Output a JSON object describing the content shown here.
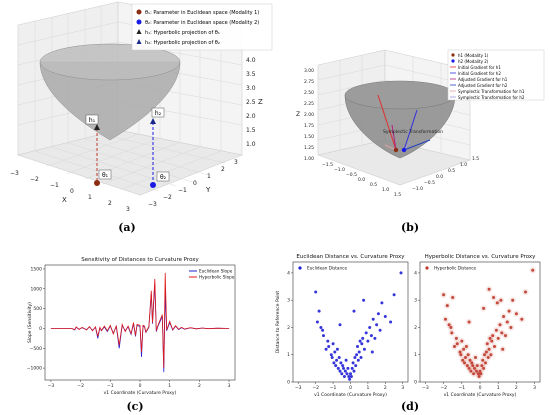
{
  "panels": {
    "a": {
      "caption": "(a)",
      "axes": {
        "x_label": "X",
        "y_label": "Y",
        "z_label": "Z",
        "x_ticks": [
          "−3",
          "−2",
          "−1",
          "0",
          "1",
          "2",
          "3"
        ],
        "y_ticks": [
          "−3",
          "−2",
          "−1",
          "0",
          "1",
          "2",
          "3"
        ],
        "z_ticks": [
          "1.0",
          "1.5",
          "2.0",
          "2.5",
          "3.0",
          "3.5",
          "4.0"
        ]
      },
      "labels": {
        "theta1": "θ₁",
        "theta2": "θ₂",
        "h1": "h₁",
        "h2": "h₂"
      },
      "legend": [
        {
          "marker": "circle",
          "color": "#8b2d10",
          "text": "θ₁: Parameter in Euclidean space (Modality 1)"
        },
        {
          "marker": "circle",
          "color": "#1a1ae6",
          "text": "θ₂: Parameter in Euclidean space (Modality 2)"
        },
        {
          "marker": "triangle",
          "color": "#222222",
          "text": "h₁: Hyperbolic projection of θ₁"
        },
        {
          "marker": "triangle",
          "color": "#1a2a8a",
          "text": "h₂: Hyperbolic projection of θ₂"
        }
      ]
    },
    "b": {
      "caption": "(b)",
      "axes": {
        "z_label": "Z",
        "z_ticks": [
          "1.00",
          "1.25",
          "1.50",
          "1.75",
          "2.00",
          "2.25",
          "2.50",
          "2.75",
          "3.00"
        ],
        "x_ticks": [
          "−1.5",
          "−1.0",
          "−0.5",
          "0.0",
          "0.5",
          "1.0",
          "1.5"
        ],
        "y_ticks": [
          "−1.0",
          "−0.5",
          "0.0",
          "0.5",
          "1.0",
          "1.5"
        ]
      },
      "annotation": "Symplectic Transformation",
      "legend": [
        {
          "marker": "dot",
          "color": "#8b2d10",
          "text": "h1 (Modality 1)"
        },
        {
          "marker": "dot",
          "color": "#1a1ae6",
          "text": "h2 (Modality 2)"
        },
        {
          "marker": "line",
          "color": "#e03030",
          "text": "Initial Gradient for h1"
        },
        {
          "marker": "line",
          "color": "#3030e0",
          "text": "Initial Gradient for h2"
        },
        {
          "marker": "line",
          "color": "#b02080",
          "text": "Adjusted Gradient for h1"
        },
        {
          "marker": "line",
          "color": "#2040c0",
          "text": "Adjusted Gradient for h2"
        },
        {
          "marker": "line",
          "color": "#e0a0a0",
          "text": "Symplectic Transformation for h1"
        },
        {
          "marker": "line",
          "color": "#a0a0e0",
          "text": "Symplectic Transformation for h2"
        }
      ]
    },
    "c": {
      "caption": "(c)"
    },
    "d": {
      "caption": "(d)"
    }
  },
  "chart_data": [
    {
      "type": "line",
      "title": "Sensitivity of Distances to Curvature Proxy",
      "xlabel": "v1 Coordinate (Curvature Proxy)",
      "ylabel": "Slope (Sensitivity)",
      "xlim": [
        -3.2,
        3.2
      ],
      "ylim": [
        -1300,
        1600
      ],
      "xticks": [
        -3,
        -2,
        -1,
        0,
        1,
        2,
        3
      ],
      "yticks": [
        -1000,
        -500,
        0,
        500,
        1000,
        1500
      ],
      "legend": "top-right",
      "series": [
        {
          "name": "Euclidean Slope",
          "color": "#1f1fd6",
          "x": [
            -3.0,
            -2.3,
            -2.2,
            -2.15,
            -2.05,
            -1.95,
            -1.8,
            -1.7,
            -1.6,
            -1.5,
            -1.42,
            -1.35,
            -1.3,
            -1.2,
            -1.1,
            -1.0,
            -0.9,
            -0.8,
            -0.7,
            -0.6,
            -0.5,
            -0.4,
            -0.3,
            -0.22,
            -0.15,
            -0.1,
            0.0,
            0.05,
            0.1,
            0.15,
            0.2,
            0.3,
            0.38,
            0.42,
            0.5,
            0.55,
            0.6,
            0.75,
            0.8,
            0.85,
            0.9,
            1.0,
            1.1,
            1.2,
            1.3,
            1.4,
            1.5,
            1.7,
            1.9,
            2.1,
            2.3,
            2.6,
            2.9,
            3.0
          ],
          "y": [
            0,
            0,
            -40,
            30,
            -20,
            20,
            -30,
            40,
            -50,
            30,
            -250,
            20,
            -60,
            40,
            -80,
            60,
            -120,
            50,
            -500,
            80,
            -60,
            40,
            -150,
            120,
            -200,
            80,
            50,
            -720,
            60,
            40,
            -100,
            30,
            880,
            120,
            1120,
            -80,
            50,
            300,
            -1100,
            900,
            -60,
            150,
            -40,
            60,
            -30,
            20,
            -20,
            15,
            -10,
            10,
            -5,
            5,
            0,
            0
          ]
        },
        {
          "name": "Hyperbolic Slope",
          "color": "#e01a1a",
          "x": [
            -3.0,
            -2.3,
            -2.2,
            -2.15,
            -2.05,
            -1.95,
            -1.8,
            -1.7,
            -1.6,
            -1.5,
            -1.42,
            -1.35,
            -1.3,
            -1.2,
            -1.1,
            -1.0,
            -0.9,
            -0.8,
            -0.7,
            -0.6,
            -0.5,
            -0.4,
            -0.3,
            -0.22,
            -0.15,
            -0.1,
            0.0,
            0.05,
            0.1,
            0.15,
            0.2,
            0.3,
            0.38,
            0.42,
            0.5,
            0.55,
            0.6,
            0.75,
            0.8,
            0.85,
            0.9,
            1.0,
            1.1,
            1.2,
            1.3,
            1.4,
            1.5,
            1.7,
            1.9,
            2.1,
            2.3,
            2.6,
            2.9,
            3.0
          ],
          "y": [
            0,
            0,
            -30,
            40,
            -30,
            30,
            -40,
            50,
            -60,
            40,
            -200,
            30,
            -50,
            60,
            -60,
            80,
            -140,
            70,
            -420,
            100,
            -80,
            60,
            -130,
            150,
            -180,
            100,
            80,
            -600,
            80,
            60,
            -90,
            50,
            950,
            140,
            1250,
            -60,
            70,
            350,
            -1000,
            1400,
            -40,
            180,
            -30,
            70,
            -20,
            30,
            -15,
            20,
            -10,
            12,
            -6,
            6,
            0,
            0
          ]
        }
      ]
    },
    {
      "type": "scatter",
      "title": "Euclidean Distance vs. Curvature Proxy",
      "xlabel": "v1 Coordinate (Curvature Proxy)",
      "ylabel": "Distance to Reference Point",
      "xlim": [
        -3.3,
        3.3
      ],
      "ylim": [
        0,
        4.4
      ],
      "xticks": [
        -3,
        -2,
        -1,
        0,
        1,
        2,
        3
      ],
      "yticks": [
        0,
        1,
        2,
        3,
        4
      ],
      "legend": "top-left",
      "series": [
        {
          "name": "Euclidean Distance",
          "color": "#1f1fd6",
          "x": [
            -2.0,
            -1.9,
            -1.8,
            -1.7,
            -1.6,
            -1.55,
            -1.4,
            -1.3,
            -1.25,
            -1.1,
            -1.05,
            -1.0,
            -0.95,
            -0.9,
            -0.85,
            -0.8,
            -0.75,
            -0.7,
            -0.65,
            -0.6,
            -0.55,
            -0.5,
            -0.45,
            -0.4,
            -0.35,
            -0.3,
            -0.25,
            -0.2,
            -0.15,
            -0.1,
            -0.05,
            0.0,
            0.05,
            0.1,
            0.15,
            0.2,
            0.25,
            0.3,
            0.35,
            0.4,
            0.45,
            0.5,
            0.55,
            0.6,
            0.65,
            0.7,
            0.8,
            0.9,
            1.0,
            1.1,
            1.2,
            1.3,
            1.4,
            1.5,
            1.6,
            1.7,
            1.8,
            2.0,
            2.3,
            2.5,
            2.9,
            -0.6,
            0.2,
            0.75,
            1.25
          ],
          "y": [
            3.3,
            2.2,
            2.6,
            2.0,
            1.9,
            1.7,
            1.2,
            1.5,
            1.3,
            1.0,
            0.9,
            1.4,
            0.7,
            1.1,
            0.6,
            0.8,
            1.2,
            0.5,
            0.9,
            0.4,
            0.7,
            0.3,
            0.6,
            0.5,
            0.2,
            0.4,
            0.8,
            0.3,
            0.5,
            0.2,
            0.1,
            0.3,
            0.2,
            0.5,
            0.7,
            0.4,
            0.9,
            0.6,
            1.0,
            1.3,
            0.8,
            1.1,
            1.5,
            0.9,
            1.4,
            1.6,
            1.2,
            1.8,
            1.5,
            2.0,
            1.7,
            2.3,
            1.6,
            2.1,
            2.5,
            1.9,
            2.9,
            2.4,
            2.2,
            3.2,
            4.0,
            2.1,
            2.6,
            3.0,
            1.1
          ]
        }
      ]
    },
    {
      "type": "scatter",
      "title": "Hyperbolic Distance vs. Curvature Proxy",
      "xlabel": "v1 Coordinate (Curvature Proxy)",
      "ylabel": "",
      "xlim": [
        -3.3,
        3.3
      ],
      "ylim": [
        0,
        4.4
      ],
      "xticks": [
        -3,
        -2,
        -1,
        0,
        1,
        2,
        3
      ],
      "yticks": [
        0,
        1,
        2,
        3,
        4
      ],
      "legend": "top-left",
      "series": [
        {
          "name": "Hyperbolic Distance",
          "color": "#c0392b",
          "x": [
            -2.0,
            -1.9,
            -1.8,
            -1.7,
            -1.6,
            -1.55,
            -1.4,
            -1.3,
            -1.25,
            -1.1,
            -1.05,
            -1.0,
            -0.95,
            -0.9,
            -0.85,
            -0.8,
            -0.75,
            -0.7,
            -0.65,
            -0.6,
            -0.55,
            -0.5,
            -0.45,
            -0.4,
            -0.35,
            -0.3,
            -0.25,
            -0.2,
            -0.15,
            -0.1,
            -0.05,
            0.0,
            0.05,
            0.1,
            0.15,
            0.2,
            0.25,
            0.3,
            0.35,
            0.4,
            0.45,
            0.5,
            0.55,
            0.6,
            0.65,
            0.7,
            0.8,
            0.9,
            1.0,
            1.1,
            1.2,
            1.3,
            1.4,
            1.5,
            1.6,
            1.7,
            1.8,
            2.0,
            2.3,
            2.5,
            2.9,
            -0.6,
            0.2,
            0.75,
            1.25,
            0.5,
            0.95,
            1.15,
            -1.5
          ],
          "y": [
            3.2,
            2.3,
            2.8,
            2.1,
            2.0,
            1.8,
            1.3,
            1.6,
            1.4,
            1.1,
            1.0,
            1.5,
            0.8,
            1.2,
            0.7,
            0.9,
            1.3,
            0.6,
            1.0,
            0.5,
            0.8,
            0.4,
            0.7,
            0.6,
            0.3,
            0.5,
            0.9,
            0.4,
            0.6,
            0.3,
            0.2,
            0.4,
            0.3,
            0.6,
            0.8,
            0.5,
            1.0,
            0.7,
            1.1,
            1.4,
            0.9,
            1.2,
            1.6,
            1.0,
            1.5,
            1.7,
            1.3,
            1.9,
            1.6,
            2.1,
            1.8,
            2.4,
            1.7,
            2.2,
            2.6,
            2.0,
            3.0,
            2.5,
            2.3,
            3.3,
            4.1,
            2.2,
            2.7,
            3.1,
            1.2,
            3.4,
            2.9,
            3.0,
            3.1
          ]
        }
      ]
    }
  ]
}
